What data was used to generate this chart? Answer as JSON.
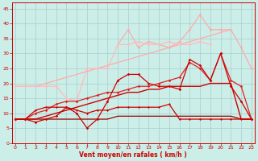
{
  "xlabel": "Vent moyen/en rafales ( km/h )",
  "background_color": "#cceee8",
  "grid_color": "#aacccc",
  "x_values": [
    0,
    1,
    2,
    3,
    4,
    5,
    6,
    7,
    8,
    9,
    10,
    11,
    12,
    13,
    14,
    15,
    16,
    17,
    18,
    19,
    20,
    21,
    22,
    23
  ],
  "ylim": [
    0,
    47
  ],
  "xlim": [
    -0.5,
    23
  ],
  "yticks": [
    0,
    5,
    10,
    15,
    20,
    25,
    30,
    35,
    40,
    45
  ],
  "lines": [
    {
      "y": [
        null,
        null,
        null,
        null,
        null,
        null,
        null,
        null,
        null,
        null,
        33,
        38,
        32,
        34,
        33,
        32,
        34,
        38,
        43,
        38,
        38,
        null,
        null,
        null
      ],
      "color": "#ffaaaa",
      "lw": 0.9,
      "marker": "D",
      "ms": 1.8,
      "zorder": 2
    },
    {
      "y": [
        19,
        19,
        19,
        20,
        21,
        22,
        23,
        24,
        25,
        26,
        27,
        28,
        29,
        30,
        31,
        32,
        33,
        34,
        35,
        36,
        37,
        38,
        null,
        null
      ],
      "color": "#ffaaaa",
      "lw": 0.9,
      "marker": null,
      "ms": 0,
      "zorder": 1
    },
    {
      "y": [
        19,
        19,
        19,
        19,
        19,
        15,
        14,
        25,
        25,
        25,
        33,
        33,
        34,
        33,
        33,
        34,
        33,
        33,
        34,
        33,
        null,
        null,
        null,
        null
      ],
      "color": "#ffbbbb",
      "lw": 0.9,
      "marker": "D",
      "ms": 1.8,
      "zorder": 2
    },
    {
      "y": [
        null,
        null,
        null,
        null,
        null,
        null,
        null,
        null,
        null,
        null,
        null,
        null,
        null,
        null,
        null,
        null,
        null,
        null,
        null,
        null,
        38,
        38,
        32,
        25
      ],
      "color": "#ffaaaa",
      "lw": 0.9,
      "marker": "D",
      "ms": 1.8,
      "zorder": 2
    },
    {
      "y": [
        8,
        8,
        10,
        11,
        13,
        14,
        14,
        15,
        16,
        17,
        17,
        18,
        19,
        19,
        20,
        21,
        22,
        27,
        25,
        21,
        30,
        21,
        19,
        8
      ],
      "color": "#dd2222",
      "lw": 0.9,
      "marker": "D",
      "ms": 1.8,
      "zorder": 5
    },
    {
      "y": [
        8,
        8,
        8,
        9,
        10,
        11,
        12,
        13,
        14,
        15,
        16,
        17,
        17,
        18,
        18,
        19,
        19,
        19,
        19,
        20,
        20,
        20,
        8,
        8
      ],
      "color": "#cc0000",
      "lw": 1.0,
      "marker": null,
      "ms": 0,
      "zorder": 4
    },
    {
      "y": [
        8,
        8,
        8,
        8,
        8,
        8,
        8,
        8,
        8,
        8,
        9,
        9,
        9,
        9,
        9,
        9,
        9,
        9,
        9,
        9,
        9,
        9,
        8,
        8
      ],
      "color": "#990000",
      "lw": 0.9,
      "marker": null,
      "ms": 0,
      "zorder": 3
    },
    {
      "y": [
        8,
        8,
        7,
        8,
        9,
        12,
        10,
        5,
        8,
        14,
        21,
        23,
        23,
        20,
        19,
        19,
        18,
        28,
        26,
        21,
        30,
        19,
        14,
        8
      ],
      "color": "#cc0000",
      "lw": 0.9,
      "marker": "D",
      "ms": 1.8,
      "zorder": 6
    },
    {
      "y": [
        8,
        8,
        11,
        12,
        12,
        12,
        11,
        10,
        11,
        11,
        12,
        12,
        12,
        12,
        12,
        13,
        8,
        8,
        8,
        8,
        8,
        8,
        8,
        8
      ],
      "color": "#cc0000",
      "lw": 0.9,
      "marker": "D",
      "ms": 1.5,
      "zorder": 5
    }
  ]
}
